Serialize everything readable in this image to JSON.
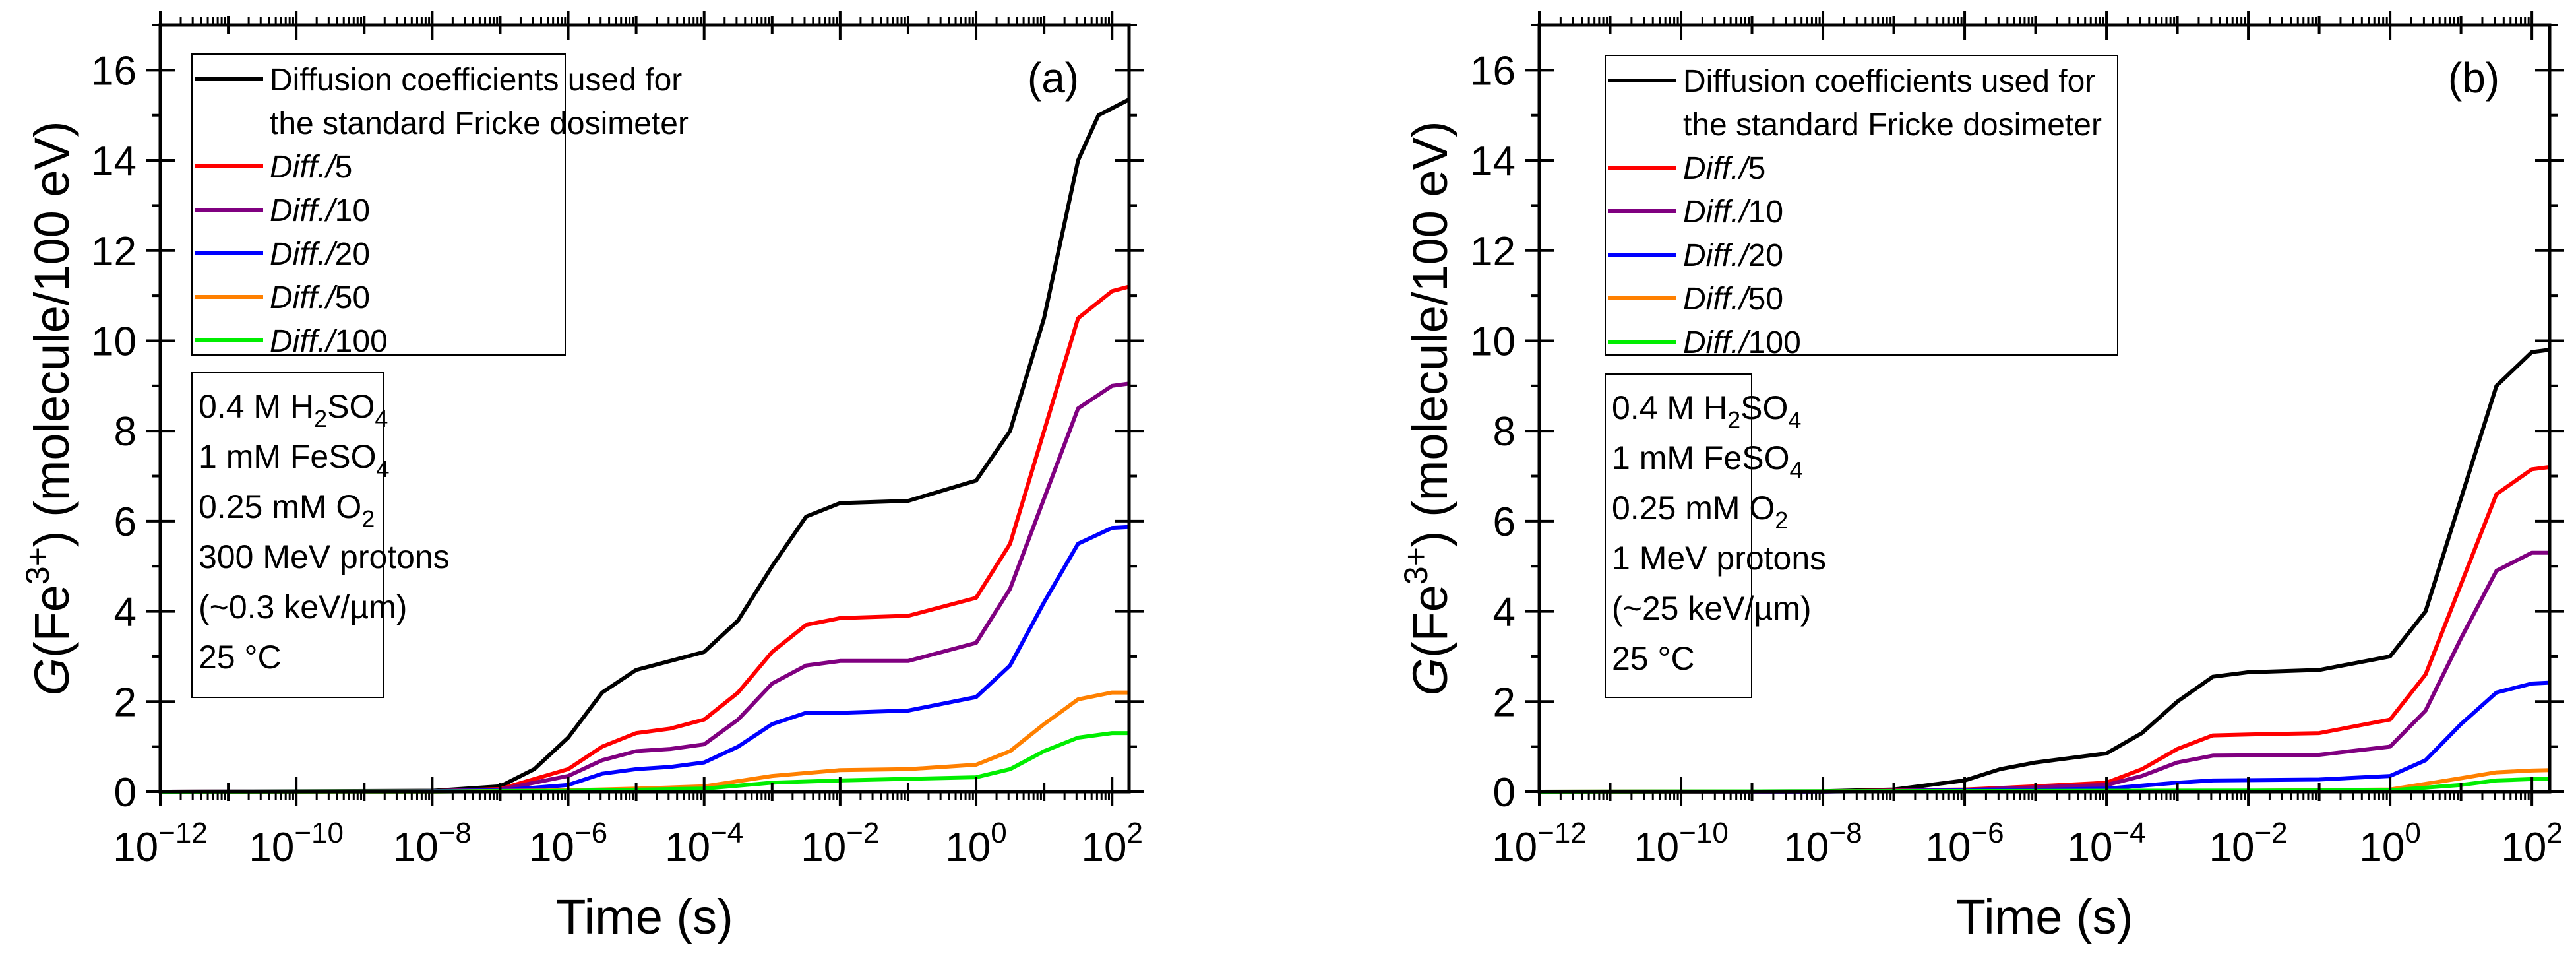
{
  "chart_data": [
    {
      "type": "line",
      "panel_label": "(a)",
      "xlabel": "Time (s)",
      "x_scale": "log",
      "xlim_log10": [
        -12,
        2.25
      ],
      "ylim": [
        0,
        17
      ],
      "ylabel": {
        "italic": "G",
        "pre": "(Fe",
        "sup": "3+",
        "post": ") (molecule/100 eV)"
      },
      "x_ticks": [
        {
          "base": "10",
          "exp": "−12",
          "v": -12
        },
        {
          "base": "10",
          "exp": "−10",
          "v": -10
        },
        {
          "base": "10",
          "exp": "−8",
          "v": -8
        },
        {
          "base": "10",
          "exp": "−6",
          "v": -6
        },
        {
          "base": "10",
          "exp": "−4",
          "v": -4
        },
        {
          "base": "10",
          "exp": "−2",
          "v": -2
        },
        {
          "base": "10",
          "exp": "0",
          "v": 0
        },
        {
          "base": "10",
          "exp": "2",
          "v": 2
        }
      ],
      "y_ticks": [
        "0",
        "2",
        "4",
        "6",
        "8",
        "10",
        "12",
        "14",
        "16"
      ],
      "legend": {
        "placement": "top-left"
      },
      "info_box": [
        [
          {
            "t": "0.4 M H"
          },
          {
            "t": "2",
            "sub": true
          },
          {
            "t": "SO"
          },
          {
            "t": "4",
            "sub": true
          }
        ],
        [
          {
            "t": "1 mM FeSO"
          },
          {
            "t": "4",
            "sub": true
          }
        ],
        [
          {
            "t": "0.25 mM O"
          },
          {
            "t": "2",
            "sub": true
          }
        ],
        [
          {
            "t": "300 MeV protons"
          }
        ],
        [
          {
            "t": "(~0.3 keV/µm)"
          }
        ],
        [
          {
            "t": "25 °C"
          }
        ]
      ],
      "series": [
        {
          "name": "Diffusion coefficients used for|the standard Fricke dosimeter",
          "color": "#000000",
          "x": [
            -12,
            -8,
            -7,
            -6.5,
            -6,
            -5.5,
            -5,
            -4.5,
            -4,
            -3.5,
            -3,
            -2.5,
            -2,
            -1,
            0,
            0.5,
            1,
            1.5,
            1.8,
            2.25
          ],
          "y": [
            0,
            0.02,
            0.12,
            0.5,
            1.2,
            2.2,
            2.7,
            2.9,
            3.1,
            3.8,
            5.0,
            6.1,
            6.4,
            6.45,
            6.9,
            8.0,
            10.5,
            14.0,
            15.0,
            15.35
          ]
        },
        {
          "name": "Diff./5",
          "italic": "Diff./",
          "plain": "5",
          "color": "#ff0000",
          "x": [
            -12,
            -8,
            -7,
            -6,
            -5.5,
            -5,
            -4.5,
            -4,
            -3.5,
            -3,
            -2.5,
            -2,
            -1,
            0,
            0.5,
            1,
            1.5,
            2,
            2.25
          ],
          "y": [
            0,
            0.01,
            0.06,
            0.5,
            1.0,
            1.3,
            1.4,
            1.6,
            2.2,
            3.1,
            3.7,
            3.85,
            3.9,
            4.3,
            5.5,
            8.0,
            10.5,
            11.1,
            11.2
          ]
        },
        {
          "name": "Diff./10",
          "italic": "Diff./",
          "plain": "10",
          "color": "#800080",
          "x": [
            -12,
            -8,
            -7,
            -6,
            -5.5,
            -5,
            -4.5,
            -4,
            -3.5,
            -3,
            -2.5,
            -2,
            -1,
            0,
            0.5,
            1,
            1.5,
            2,
            2.25
          ],
          "y": [
            0,
            0.01,
            0.05,
            0.35,
            0.7,
            0.9,
            0.95,
            1.05,
            1.6,
            2.4,
            2.8,
            2.9,
            2.9,
            3.3,
            4.5,
            6.5,
            8.5,
            9.0,
            9.05
          ]
        },
        {
          "name": "Diff./20",
          "italic": "Diff./",
          "plain": "20",
          "color": "#0000ff",
          "x": [
            -12,
            -8,
            -7,
            -6,
            -5.5,
            -5,
            -4.5,
            -4,
            -3.5,
            -3,
            -2.5,
            -2,
            -1,
            0,
            0.5,
            1,
            1.5,
            2,
            2.25
          ],
          "y": [
            0,
            0.01,
            0.03,
            0.15,
            0.4,
            0.5,
            0.55,
            0.65,
            1.0,
            1.5,
            1.75,
            1.75,
            1.8,
            2.1,
            2.8,
            4.2,
            5.5,
            5.85,
            5.87
          ]
        },
        {
          "name": "Diff./50",
          "italic": "Diff./",
          "plain": "50",
          "color": "#ff8000",
          "x": [
            -12,
            -8,
            -6,
            -5,
            -4,
            -3,
            -2,
            -1,
            0,
            0.5,
            1,
            1.5,
            2,
            2.25
          ],
          "y": [
            0,
            0.005,
            0.03,
            0.07,
            0.12,
            0.35,
            0.48,
            0.5,
            0.6,
            0.9,
            1.5,
            2.05,
            2.2,
            2.2
          ]
        },
        {
          "name": "Diff./100",
          "italic": "Diff./",
          "plain": "100",
          "color": "#00ee00",
          "x": [
            -12,
            -8,
            -6,
            -4,
            -3,
            -2,
            0,
            0.5,
            1,
            1.5,
            2,
            2.25
          ],
          "y": [
            0,
            0.005,
            0.02,
            0.07,
            0.2,
            0.25,
            0.32,
            0.5,
            0.9,
            1.2,
            1.3,
            1.3
          ]
        }
      ]
    },
    {
      "type": "line",
      "panel_label": "(b)",
      "xlabel": "Time (s)",
      "x_scale": "log",
      "xlim_log10": [
        -12,
        2.25
      ],
      "ylim": [
        0,
        17
      ],
      "ylabel": {
        "italic": "G",
        "pre": "(Fe",
        "sup": "3+",
        "post": ") (molecule/100 eV)"
      },
      "x_ticks": [
        {
          "base": "10",
          "exp": "−12",
          "v": -12
        },
        {
          "base": "10",
          "exp": "−10",
          "v": -10
        },
        {
          "base": "10",
          "exp": "−8",
          "v": -8
        },
        {
          "base": "10",
          "exp": "−6",
          "v": -6
        },
        {
          "base": "10",
          "exp": "−4",
          "v": -4
        },
        {
          "base": "10",
          "exp": "−2",
          "v": -2
        },
        {
          "base": "10",
          "exp": "0",
          "v": 0
        },
        {
          "base": "10",
          "exp": "2",
          "v": 2
        }
      ],
      "y_ticks": [
        "0",
        "2",
        "4",
        "6",
        "8",
        "10",
        "12",
        "14",
        "16"
      ],
      "legend": {
        "placement": "top-left"
      },
      "info_box": [
        [
          {
            "t": "0.4 M H"
          },
          {
            "t": "2",
            "sub": true
          },
          {
            "t": "SO"
          },
          {
            "t": "4",
            "sub": true
          }
        ],
        [
          {
            "t": "1 mM FeSO"
          },
          {
            "t": "4",
            "sub": true
          }
        ],
        [
          {
            "t": "0.25 mM O"
          },
          {
            "t": "2",
            "sub": true
          }
        ],
        [
          {
            "t": "1 MeV protons"
          }
        ],
        [
          {
            "t": "(~25 keV/µm)"
          }
        ],
        [
          {
            "t": "25 °C"
          }
        ]
      ],
      "series": [
        {
          "name": "Diffusion coefficients used for|the standard Fricke dosimeter",
          "color": "#000000",
          "x": [
            -12,
            -8,
            -7,
            -6,
            -5.5,
            -5,
            -4.5,
            -4,
            -3.5,
            -3,
            -2.5,
            -2,
            -1,
            0,
            0.5,
            1,
            1.5,
            2,
            2.25
          ],
          "y": [
            0,
            0.01,
            0.05,
            0.25,
            0.5,
            0.65,
            0.75,
            0.85,
            1.3,
            2.0,
            2.55,
            2.65,
            2.7,
            3.0,
            4.0,
            6.5,
            9.0,
            9.75,
            9.8
          ]
        },
        {
          "name": "Diff./5",
          "italic": "Diff./",
          "plain": "5",
          "color": "#ff0000",
          "x": [
            -12,
            -8,
            -6,
            -5,
            -4,
            -3.5,
            -3,
            -2.5,
            -2,
            -1,
            0,
            0.5,
            1,
            1.5,
            2,
            2.25
          ],
          "y": [
            0,
            0.005,
            0.05,
            0.12,
            0.2,
            0.5,
            0.95,
            1.25,
            1.27,
            1.3,
            1.6,
            2.6,
            4.6,
            6.6,
            7.15,
            7.2
          ]
        },
        {
          "name": "Diff./10",
          "italic": "Diff./",
          "plain": "10",
          "color": "#800080",
          "x": [
            -12,
            -8,
            -6,
            -5,
            -4,
            -3.5,
            -3,
            -2.5,
            -1,
            0,
            0.5,
            1,
            1.5,
            2,
            2.25
          ],
          "y": [
            0,
            0.005,
            0.04,
            0.1,
            0.15,
            0.35,
            0.65,
            0.8,
            0.82,
            1.0,
            1.8,
            3.4,
            4.9,
            5.3,
            5.3
          ]
        },
        {
          "name": "Diff./20",
          "italic": "Diff./",
          "plain": "20",
          "color": "#0000ff",
          "x": [
            -12,
            -8,
            -5,
            -4,
            -3,
            -2.5,
            -1,
            0,
            0.5,
            1,
            1.5,
            2,
            2.25
          ],
          "y": [
            0,
            0.003,
            0.04,
            0.07,
            0.2,
            0.25,
            0.27,
            0.35,
            0.7,
            1.5,
            2.2,
            2.4,
            2.42
          ]
        },
        {
          "name": "Diff./50",
          "italic": "Diff./",
          "plain": "50",
          "color": "#ff8000",
          "x": [
            -12,
            -2,
            0,
            1,
            1.5,
            2,
            2.25
          ],
          "y": [
            0,
            0.02,
            0.05,
            0.3,
            0.43,
            0.47,
            0.48
          ]
        },
        {
          "name": "Diff./100",
          "italic": "Diff./",
          "plain": "100",
          "color": "#00ee00",
          "x": [
            -12,
            0,
            1,
            1.5,
            2,
            2.25
          ],
          "y": [
            0,
            0.03,
            0.15,
            0.25,
            0.28,
            0.28
          ]
        }
      ]
    }
  ]
}
